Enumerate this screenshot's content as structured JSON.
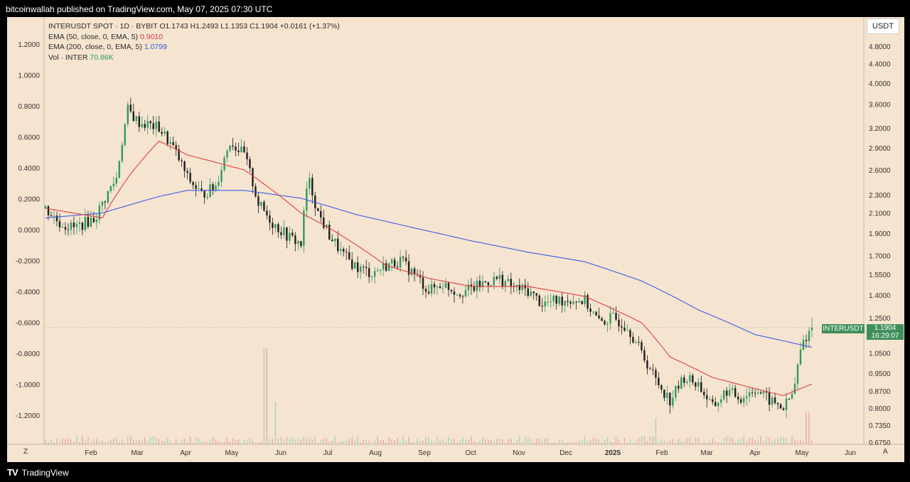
{
  "header": {
    "publisher": "bitcoinwallah published on TradingView.com, May 07, 2025 07:30 UTC"
  },
  "legend": {
    "symbol_line": "INTERUSDT SPOT · 1D · BYBIT  O1.1743  H1.2493  L1.1353  C1.1904  +0.0161 (+1.37%)",
    "ema50_label": "EMA (50, close, 0, EMA, 5)",
    "ema50_value": "0.9010",
    "ema200_label": "EMA (200, close, 0, EMA, 5)",
    "ema200_value": "1.0799",
    "vol_label": "Vol · INTER",
    "vol_value": "70.86K"
  },
  "currency": "USDT",
  "last_price": {
    "symbol": "INTERUSDT",
    "price": "1.1904",
    "countdown": "16:29:07"
  },
  "footer": {
    "brand": "TradingView"
  },
  "axis_buttons": {
    "left": "Z",
    "right": "A"
  },
  "colors": {
    "background": "#f5e4d0",
    "up": "#2e9a5f",
    "down": "#1e1e1e",
    "ema50": "#e0413f",
    "ema200": "#3b5ee6"
  },
  "chart_data": {
    "type": "candlestick",
    "x_ticks": [
      "Feb",
      "Mar",
      "Apr",
      "May",
      "Jun",
      "Jul",
      "Aug",
      "Sep",
      "Oct",
      "Nov",
      "Dec",
      "2025",
      "Feb",
      "Mar",
      "Apr",
      "May",
      "Jun"
    ],
    "left_axis_ticks": [
      "1.2000",
      "1.0000",
      "0.8000",
      "0.6000",
      "0.4000",
      "0.2000",
      "0.0000",
      "-0.2000",
      "-0.4000",
      "-0.6000",
      "-0.8000",
      "-1.0000",
      "-1.2000"
    ],
    "right_axis_ticks": [
      "4.8000",
      "4.4000",
      "4.0000",
      "3.6000",
      "3.2000",
      "2.9000",
      "2.6000",
      "2.3000",
      "2.1000",
      "1.9000",
      "1.7000",
      "1.5500",
      "1.4000",
      "1.2500",
      "1.0500",
      "0.9500",
      "0.8700",
      "0.8000",
      "0.7350",
      "0.6750"
    ],
    "y_scale": "log",
    "ohlc_last": {
      "open": 1.1743,
      "high": 1.2493,
      "low": 1.1353,
      "close": 1.1904
    },
    "close_path": [
      [
        0,
        2.15
      ],
      [
        10,
        2.0
      ],
      [
        20,
        1.95
      ],
      [
        35,
        2.05
      ],
      [
        50,
        2.5
      ],
      [
        58,
        3.5
      ],
      [
        65,
        3.3
      ],
      [
        80,
        3.2
      ],
      [
        90,
        2.9
      ],
      [
        100,
        2.5
      ],
      [
        110,
        2.3
      ],
      [
        120,
        2.4
      ],
      [
        130,
        3.0
      ],
      [
        140,
        2.8
      ],
      [
        150,
        2.2
      ],
      [
        160,
        2.0
      ],
      [
        170,
        1.88
      ],
      [
        180,
        1.8
      ],
      [
        185,
        2.5
      ],
      [
        192,
        2.1
      ],
      [
        200,
        1.88
      ],
      [
        210,
        1.7
      ],
      [
        220,
        1.6
      ],
      [
        230,
        1.56
      ],
      [
        240,
        1.62
      ],
      [
        250,
        1.66
      ],
      [
        260,
        1.55
      ],
      [
        270,
        1.43
      ],
      [
        280,
        1.48
      ],
      [
        290,
        1.42
      ],
      [
        300,
        1.44
      ],
      [
        310,
        1.49
      ],
      [
        320,
        1.52
      ],
      [
        330,
        1.45
      ],
      [
        340,
        1.43
      ],
      [
        350,
        1.34
      ],
      [
        360,
        1.36
      ],
      [
        370,
        1.37
      ],
      [
        380,
        1.36
      ],
      [
        390,
        1.22
      ],
      [
        400,
        1.25
      ],
      [
        410,
        1.2
      ],
      [
        420,
        1.05
      ],
      [
        430,
        0.92
      ],
      [
        440,
        0.83
      ],
      [
        450,
        0.93
      ],
      [
        460,
        0.9
      ],
      [
        470,
        0.8
      ],
      [
        480,
        0.87
      ],
      [
        490,
        0.84
      ],
      [
        500,
        0.88
      ],
      [
        510,
        0.83
      ],
      [
        520,
        0.8
      ],
      [
        527,
        0.86
      ],
      [
        533,
        1.1
      ],
      [
        540,
        1.19
      ]
    ],
    "ema50_path": [
      [
        0,
        2.15
      ],
      [
        40,
        2.05
      ],
      [
        60,
        2.55
      ],
      [
        80,
        3.0
      ],
      [
        100,
        2.8
      ],
      [
        120,
        2.7
      ],
      [
        140,
        2.6
      ],
      [
        160,
        2.35
      ],
      [
        180,
        2.1
      ],
      [
        200,
        1.95
      ],
      [
        240,
        1.62
      ],
      [
        270,
        1.52
      ],
      [
        300,
        1.46
      ],
      [
        340,
        1.46
      ],
      [
        380,
        1.39
      ],
      [
        420,
        1.22
      ],
      [
        440,
        1.03
      ],
      [
        470,
        0.93
      ],
      [
        500,
        0.88
      ],
      [
        520,
        0.85
      ],
      [
        540,
        0.9
      ]
    ],
    "ema200_path": [
      [
        0,
        2.05
      ],
      [
        40,
        2.1
      ],
      [
        80,
        2.28
      ],
      [
        100,
        2.35
      ],
      [
        140,
        2.35
      ],
      [
        180,
        2.26
      ],
      [
        220,
        2.08
      ],
      [
        260,
        1.95
      ],
      [
        300,
        1.83
      ],
      [
        340,
        1.73
      ],
      [
        380,
        1.65
      ],
      [
        420,
        1.5
      ],
      [
        460,
        1.3
      ],
      [
        500,
        1.15
      ],
      [
        540,
        1.08
      ]
    ],
    "volume_spikes": [
      [
        155,
        0.9
      ],
      [
        162,
        0.4
      ],
      [
        430,
        0.25
      ],
      [
        537,
        0.3
      ]
    ]
  }
}
